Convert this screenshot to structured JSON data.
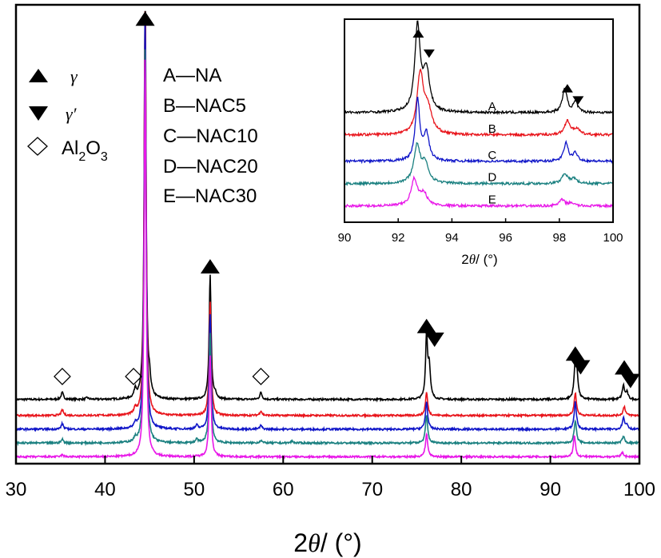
{
  "chart_data": [
    {
      "type": "line",
      "title": "",
      "xlabel_prefix": "2",
      "xlabel_symbol": "θ",
      "xlabel_suffix": "/ (°)",
      "ylabel": "",
      "xlim": [
        30,
        100
      ],
      "xticks": [
        30,
        40,
        50,
        60,
        70,
        80,
        90,
        100
      ],
      "yticks_shown": false,
      "baselines_relative": [
        0.14,
        0.105,
        0.075,
        0.045,
        0.015
      ],
      "series": [
        {
          "name": "A",
          "sample": "NA",
          "color": "#000000",
          "peaks": [
            [
              35.2,
              0.015
            ],
            [
              38,
              0.004
            ],
            [
              43.4,
              0.02
            ],
            [
              44.5,
              0.93
            ],
            [
              45,
              0.03
            ],
            [
              51.8,
              0.27
            ],
            [
              52.4,
              0.01
            ],
            [
              57.5,
              0.015
            ],
            [
              76.1,
              0.14
            ],
            [
              76.4,
              0.07
            ],
            [
              92.8,
              0.08
            ],
            [
              93.0,
              0.04
            ],
            [
              98.2,
              0.03
            ],
            [
              98.6,
              0.015
            ]
          ]
        },
        {
          "name": "B",
          "sample": "NAC5",
          "color": "#e8141b",
          "peaks": [
            [
              35.2,
              0.012
            ],
            [
              43.4,
              0.012
            ],
            [
              44.5,
              0.95
            ],
            [
              51.8,
              0.25
            ],
            [
              57.5,
              0.01
            ],
            [
              76.1,
              0.05
            ],
            [
              92.8,
              0.05
            ],
            [
              98.3,
              0.02
            ]
          ]
        },
        {
          "name": "C",
          "sample": "NAC10",
          "color": "#0f15c8",
          "peaks": [
            [
              35.2,
              0.012
            ],
            [
              43.4,
              0.01
            ],
            [
              44.5,
              0.92
            ],
            [
              50.3,
              0.008
            ],
            [
              51.8,
              0.25
            ],
            [
              57.5,
              0.008
            ],
            [
              76.1,
              0.06
            ],
            [
              92.8,
              0.06
            ],
            [
              98.2,
              0.025
            ],
            [
              98.6,
              0.01
            ]
          ]
        },
        {
          "name": "D",
          "sample": "NAC20",
          "color": "#1a8080",
          "peaks": [
            [
              35.2,
              0.008
            ],
            [
              43.4,
              0.008
            ],
            [
              44.5,
              0.87
            ],
            [
              50.3,
              0.008
            ],
            [
              51.8,
              0.24
            ],
            [
              57.5,
              0.006
            ],
            [
              61,
              0.004
            ],
            [
              76.1,
              0.06
            ],
            [
              92.8,
              0.05
            ],
            [
              98.2,
              0.015
            ]
          ]
        },
        {
          "name": "E",
          "sample": "NAC30",
          "color": "#e817e8",
          "peaks": [
            [
              35.2,
              0.004
            ],
            [
              44.5,
              0.88
            ],
            [
              51.8,
              0.22
            ],
            [
              76.1,
              0.05
            ],
            [
              92.7,
              0.045
            ],
            [
              98.1,
              0.01
            ]
          ]
        }
      ],
      "markers": [
        {
          "type": "gamma",
          "x": 44.5,
          "level": 0.97
        },
        {
          "type": "gamma",
          "x": 51.8,
          "level": 0.43
        },
        {
          "type": "gamma",
          "x": 76.1,
          "level": 0.3
        },
        {
          "type": "gamma_prime",
          "x": 77.0,
          "level": 0.27
        },
        {
          "type": "gamma",
          "x": 92.8,
          "level": 0.24
        },
        {
          "type": "gamma_prime",
          "x": 93.4,
          "level": 0.21
        },
        {
          "type": "gamma",
          "x": 98.3,
          "level": 0.21
        },
        {
          "type": "gamma_prime",
          "x": 99.0,
          "level": 0.18
        },
        {
          "type": "al2o3",
          "x": 35.2,
          "level": 0.19
        },
        {
          "type": "al2o3",
          "x": 43.2,
          "level": 0.19
        },
        {
          "type": "al2o3",
          "x": 57.5,
          "level": 0.19
        }
      ],
      "legend": {
        "placement": "top-left",
        "symbols": [
          {
            "type": "gamma",
            "label": "γ"
          },
          {
            "type": "gamma_prime",
            "label": "γ′"
          },
          {
            "type": "al2o3",
            "label_main": "Al",
            "sub1": "2",
            "label_mid": "O",
            "sub2": "3"
          }
        ],
        "samples": [
          "A—NA",
          "B—NAC5",
          "C—NAC10",
          "D—NAC20",
          "E—NAC30"
        ]
      }
    },
    {
      "type": "line",
      "title": "inset",
      "xlabel_prefix": "2",
      "xlabel_symbol": "θ",
      "xlabel_suffix": "/ (°)",
      "xlim": [
        90,
        100
      ],
      "xticks": [
        90,
        92,
        94,
        96,
        98,
        100
      ],
      "curve_labels": [
        "A",
        "B",
        "C",
        "D",
        "E"
      ],
      "baselines_relative": [
        0.54,
        0.43,
        0.3,
        0.19,
        0.08
      ],
      "series": [
        {
          "name": "A",
          "color": "#000000",
          "peaks": [
            [
              92.72,
              0.42,
              0.12
            ],
            [
              93.05,
              0.2,
              0.14
            ],
            [
              98.2,
              0.12,
              0.1
            ],
            [
              98.6,
              0.05,
              0.1
            ]
          ]
        },
        {
          "name": "B",
          "color": "#e8141b",
          "peaks": [
            [
              92.82,
              0.29,
              0.14
            ],
            [
              93.1,
              0.12,
              0.18
            ],
            [
              98.3,
              0.07,
              0.12
            ],
            [
              98.65,
              0.03,
              0.12
            ]
          ]
        },
        {
          "name": "C",
          "color": "#0f15c8",
          "peaks": [
            [
              92.72,
              0.3,
              0.1
            ],
            [
              93.05,
              0.13,
              0.12
            ],
            [
              98.25,
              0.09,
              0.1
            ],
            [
              98.6,
              0.04,
              0.1
            ]
          ]
        },
        {
          "name": "D",
          "color": "#1a8080",
          "peaks": [
            [
              92.7,
              0.18,
              0.14
            ],
            [
              93.0,
              0.09,
              0.16
            ],
            [
              98.2,
              0.05,
              0.12
            ],
            [
              98.55,
              0.025,
              0.12
            ]
          ]
        },
        {
          "name": "E",
          "color": "#e817e8",
          "peaks": [
            [
              92.6,
              0.13,
              0.14
            ],
            [
              92.95,
              0.06,
              0.15
            ],
            [
              98.1,
              0.03,
              0.12
            ],
            [
              98.45,
              0.015,
              0.12
            ]
          ]
        }
      ],
      "markers": [
        {
          "type": "gamma",
          "x": 92.75,
          "level": 0.93
        },
        {
          "type": "gamma_prime",
          "x": 93.15,
          "level": 0.83
        },
        {
          "type": "gamma",
          "x": 98.3,
          "level": 0.66
        },
        {
          "type": "gamma_prime",
          "x": 98.7,
          "level": 0.6
        }
      ]
    }
  ]
}
